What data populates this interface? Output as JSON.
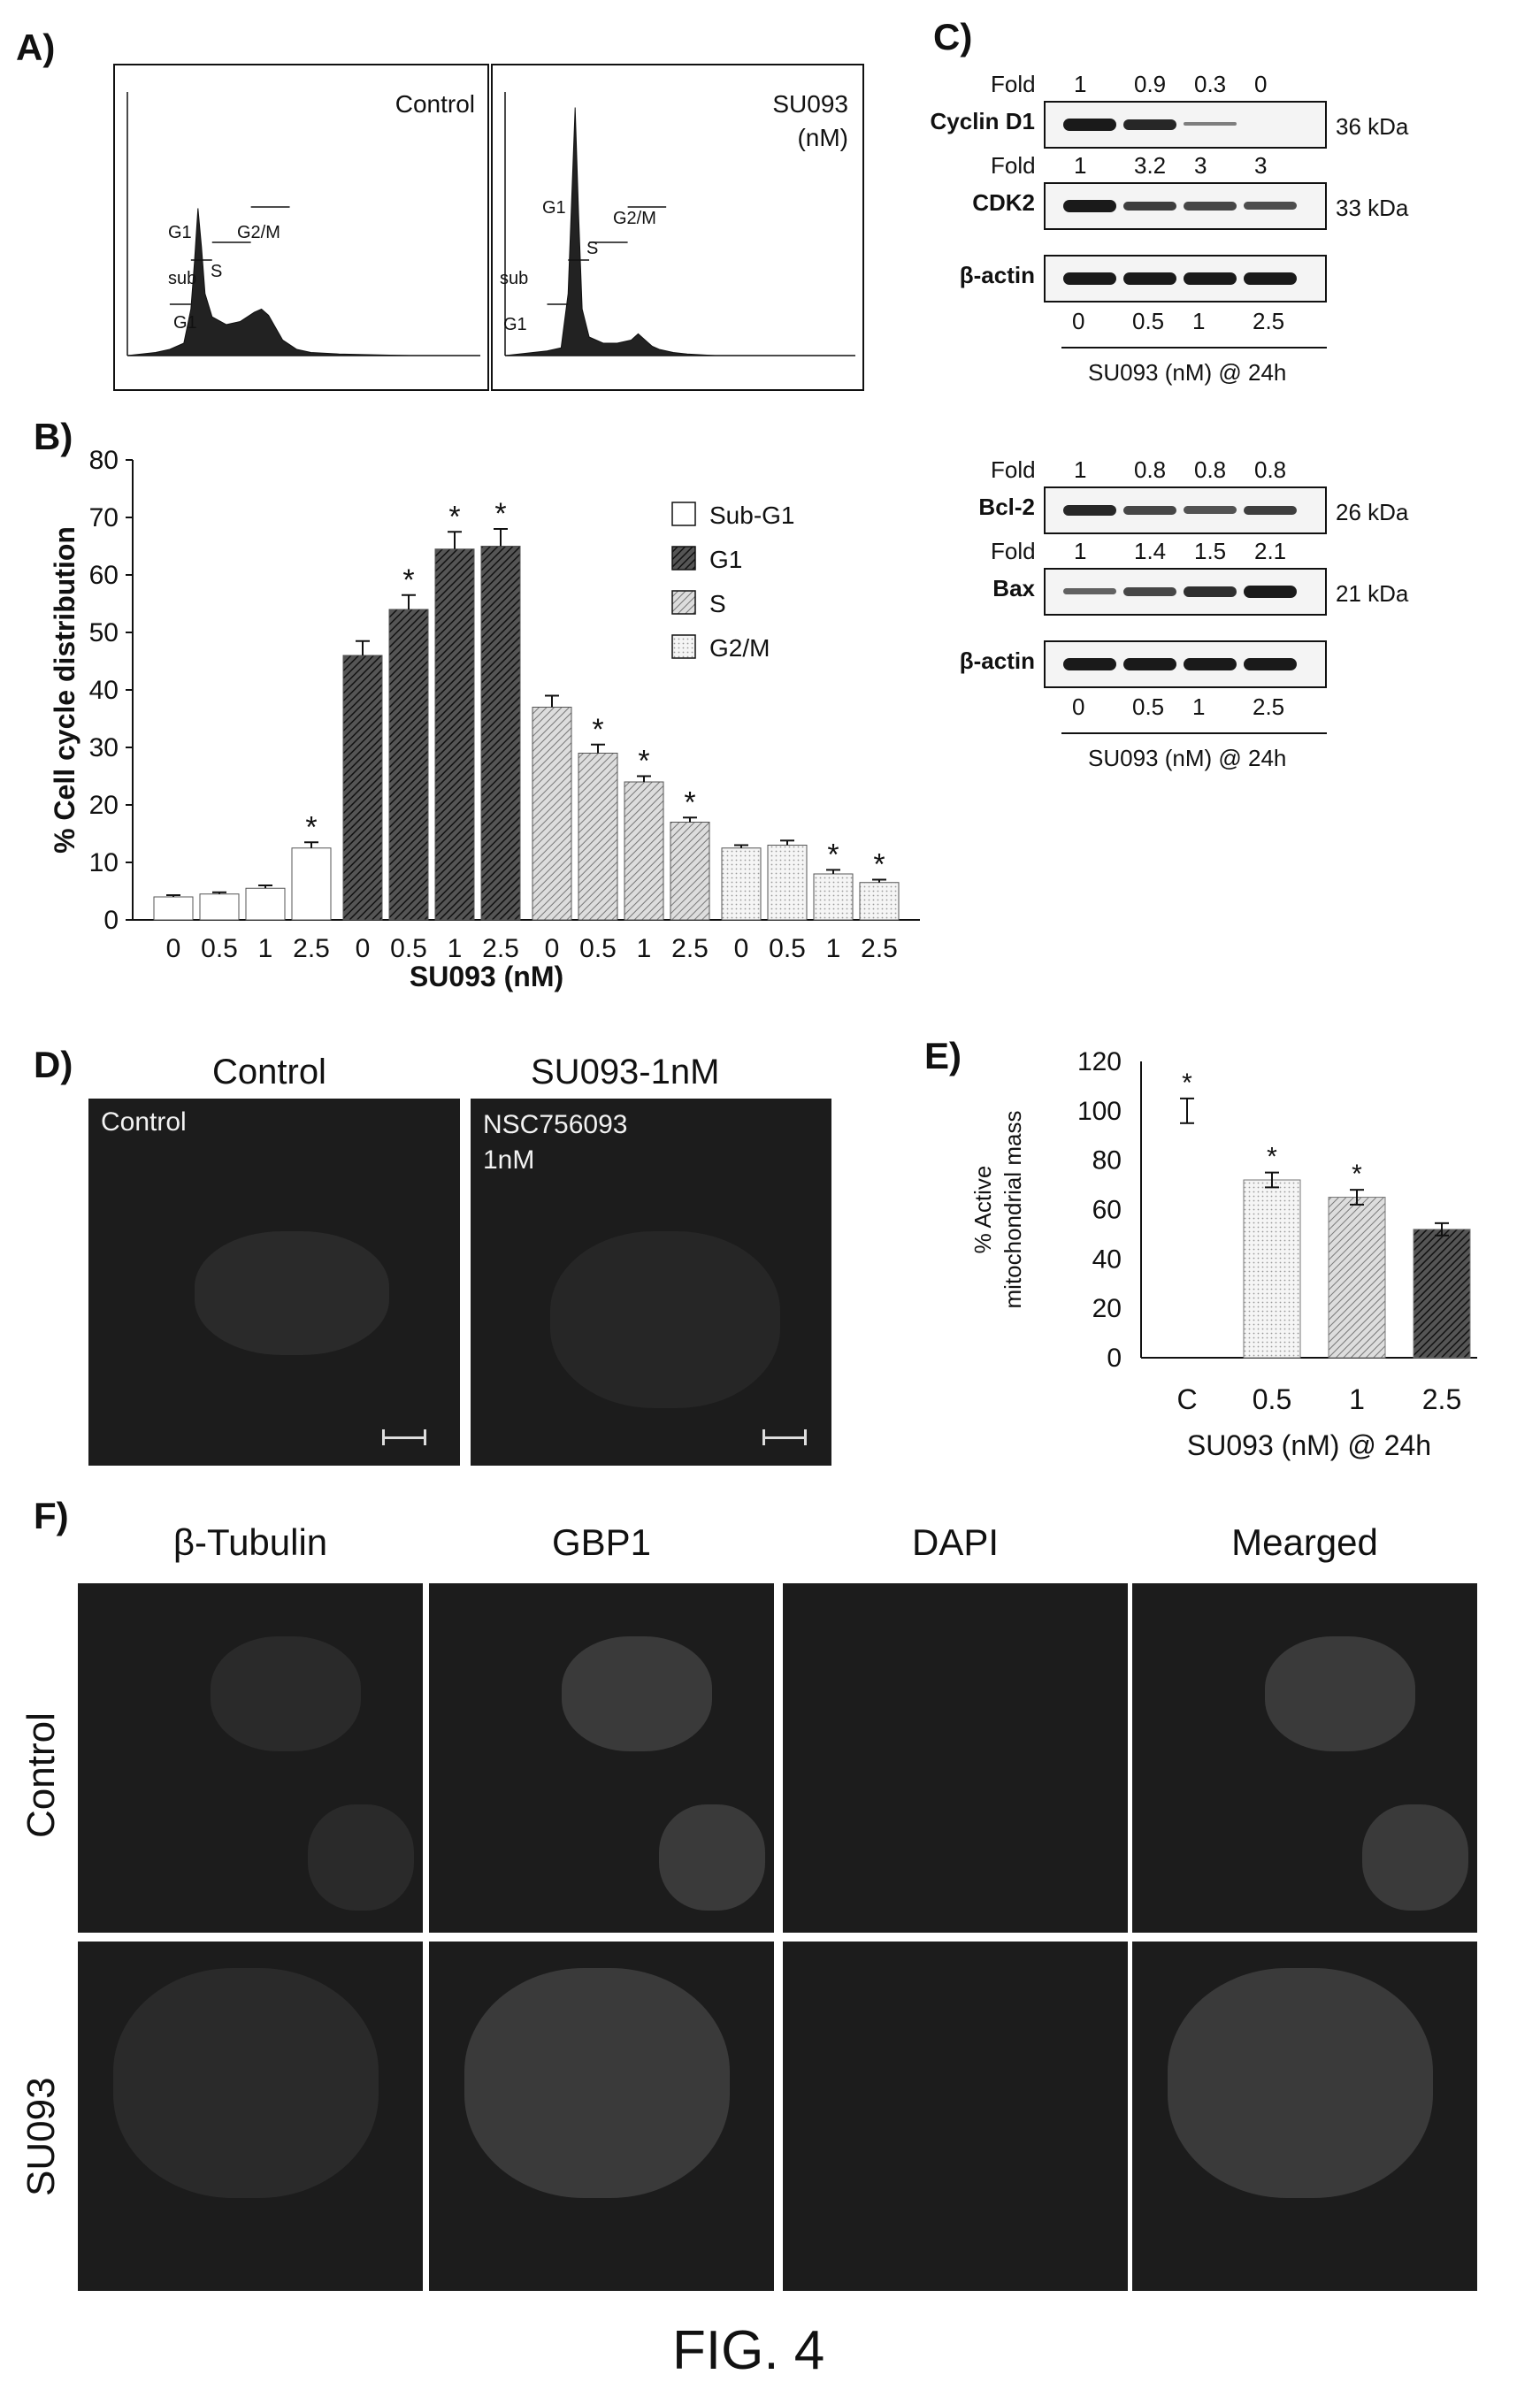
{
  "panel_labels": {
    "A": "A)",
    "B": "B)",
    "C": "C)",
    "D": "D)",
    "E": "E)",
    "F": "F)"
  },
  "figure_caption": "FIG. 4",
  "panel_a": {
    "control_label": "Control",
    "treated_label_line1": "SU093",
    "treated_label_line2": "(nM)",
    "phase_labels": {
      "sub": "sub",
      "g1_sub": "G1",
      "g1": "G1",
      "s": "S",
      "g2m": "G2/M"
    }
  },
  "panel_c": {
    "fold_label": "Fold",
    "blot_groups": [
      {
        "doses": [
          "0",
          "0.5",
          "1",
          "2.5"
        ],
        "axis_label": "SU093 (nM) @ 24h",
        "blots": [
          {
            "name": "Cyclin D1",
            "kda": "36 kDa",
            "fold": [
              "1",
              "0.9",
              "0.3",
              "0"
            ],
            "intensity": [
              1,
              0.9,
              0.3,
              0
            ]
          },
          {
            "name": "CDK2",
            "kda": "33 kDa",
            "fold": [
              "1",
              "3.2",
              "3",
              "3"
            ],
            "intensity": [
              1,
              0.75,
              0.7,
              0.65
            ]
          },
          {
            "name": "β-actin",
            "kda": "",
            "fold": [],
            "intensity": [
              1,
              1,
              1,
              1
            ]
          }
        ]
      },
      {
        "doses": [
          "0",
          "0.5",
          "1",
          "2.5"
        ],
        "axis_label": "SU093 (nM) @ 24h",
        "blots": [
          {
            "name": "Bcl-2",
            "kda": "26 kDa",
            "fold": [
              "1",
              "0.8",
              "0.8",
              "0.8"
            ],
            "intensity": [
              0.9,
              0.7,
              0.6,
              0.75
            ]
          },
          {
            "name": "Bax",
            "kda": "21 kDa",
            "fold": [
              "1",
              "1.4",
              "1.5",
              "2.1"
            ],
            "intensity": [
              0.5,
              0.7,
              0.85,
              1
            ]
          },
          {
            "name": "β-actin",
            "kda": "",
            "fold": [],
            "intensity": [
              1,
              1,
              1,
              1
            ]
          }
        ]
      }
    ]
  },
  "panel_d": {
    "titles": [
      "Control",
      "SU093-1nM"
    ],
    "overlays": [
      "Control",
      "NSC756093\n1nM"
    ]
  },
  "panel_f": {
    "columns": [
      "β-Tubulin",
      "GBP1",
      "DAPI",
      "Mearged"
    ],
    "rows": [
      "Control",
      "SU093"
    ]
  },
  "colors": {
    "ink": "#111111",
    "micro_bg": "#1c1c1c"
  },
  "chart_data": [
    {
      "id": "A-control",
      "type": "area",
      "title": "Control",
      "xlabel": "",
      "ylabel": "",
      "x": [
        0,
        40,
        60,
        80,
        90,
        95,
        100,
        105,
        110,
        120,
        140,
        160,
        180,
        190,
        200,
        210,
        220,
        240,
        260,
        300,
        400,
        500
      ],
      "y": [
        0,
        2,
        4,
        8,
        30,
        60,
        95,
        70,
        40,
        25,
        20,
        22,
        28,
        30,
        26,
        18,
        10,
        4,
        2,
        1,
        0,
        0
      ]
    },
    {
      "id": "A-treated",
      "type": "area",
      "title": "SU093 (nM)",
      "xlabel": "",
      "ylabel": "",
      "x": [
        0,
        40,
        60,
        80,
        90,
        95,
        100,
        105,
        110,
        120,
        140,
        160,
        180,
        190,
        200,
        210,
        220,
        240,
        260,
        300,
        400,
        500
      ],
      "y": [
        0,
        2,
        3,
        5,
        40,
        100,
        160,
        90,
        30,
        12,
        8,
        8,
        10,
        14,
        10,
        6,
        4,
        2,
        1,
        0,
        0,
        0
      ]
    },
    {
      "id": "B",
      "type": "bar",
      "ylabel": "% Cell cycle distribution",
      "xlabel": "SU093 (nM)",
      "ylim": [
        0,
        80
      ],
      "yticks": [
        0,
        10,
        20,
        30,
        40,
        50,
        60,
        70,
        80
      ],
      "legend_position": "right",
      "categories": [
        "0",
        "0.5",
        "1",
        "2.5"
      ],
      "series": [
        {
          "name": "Sub-G1",
          "values": [
            4,
            4.5,
            5.5,
            12.5
          ],
          "errors": [
            0.3,
            0.3,
            0.5,
            1
          ],
          "sig": [
            false,
            false,
            false,
            true
          ],
          "fill": "plain"
        },
        {
          "name": "G1",
          "values": [
            46,
            54,
            64.5,
            65
          ],
          "errors": [
            2.5,
            2.5,
            3,
            3
          ],
          "sig": [
            false,
            true,
            true,
            true
          ],
          "fill": "dark"
        },
        {
          "name": "S",
          "values": [
            37,
            29,
            24,
            17
          ],
          "errors": [
            2,
            1.5,
            1,
            0.8
          ],
          "sig": [
            false,
            true,
            true,
            true
          ],
          "fill": "light"
        },
        {
          "name": "G2/M",
          "values": [
            12.5,
            13,
            8,
            6.5
          ],
          "errors": [
            0.5,
            0.8,
            0.7,
            0.5
          ],
          "sig": [
            false,
            false,
            true,
            true
          ],
          "fill": "dotted"
        }
      ]
    },
    {
      "id": "E",
      "type": "bar",
      "ylabel": "% Active mitochondrial mass",
      "xlabel": "SU093 (nM) @ 24h",
      "ylim": [
        0,
        120
      ],
      "yticks": [
        0,
        20,
        40,
        60,
        80,
        100,
        120
      ],
      "categories": [
        "C",
        "0.5",
        "1",
        "2.5"
      ],
      "values": [
        100,
        72,
        65,
        52
      ],
      "errors": [
        5,
        3,
        3,
        2.5
      ],
      "sig": [
        true,
        true,
        true,
        false
      ]
    }
  ]
}
